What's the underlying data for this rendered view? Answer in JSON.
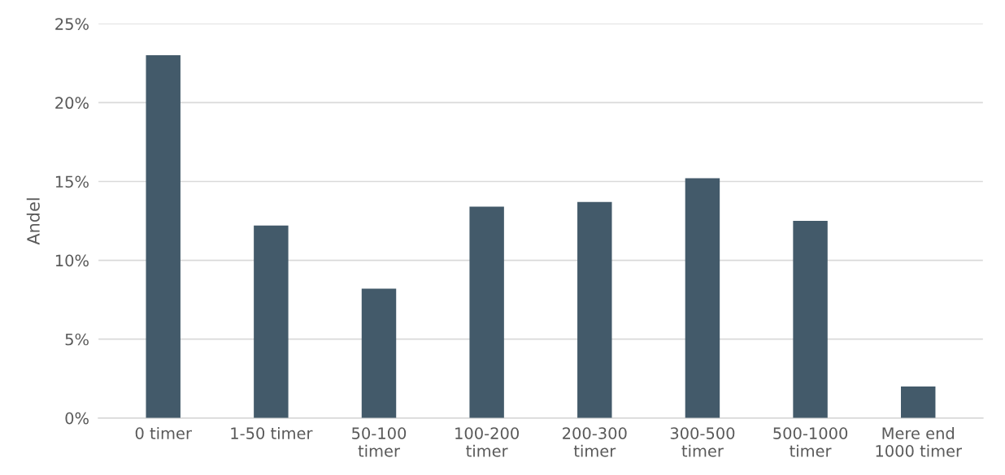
{
  "chart_data": {
    "type": "bar",
    "ylabel": "Andel",
    "categories": [
      "0 timer",
      "1-50 timer",
      "50-100\ntimer",
      "100-200\ntimer",
      "200-300\ntimer",
      "300-500\ntimer",
      "500-1000\ntimer",
      "Mere end\n1000 timer"
    ],
    "values": [
      23.0,
      12.2,
      8.2,
      13.4,
      13.7,
      15.2,
      12.5,
      2.0
    ],
    "color": "#435a6a",
    "ylim": [
      0,
      25
    ],
    "yticks": [
      {
        "value": 0,
        "label": "0%"
      },
      {
        "value": 5,
        "label": "5%"
      },
      {
        "value": 10,
        "label": "10%"
      },
      {
        "value": 15,
        "label": "15%"
      },
      {
        "value": 20,
        "label": "20%"
      },
      {
        "value": 25,
        "label": "25%"
      }
    ],
    "grid": "y",
    "legend": false
  }
}
